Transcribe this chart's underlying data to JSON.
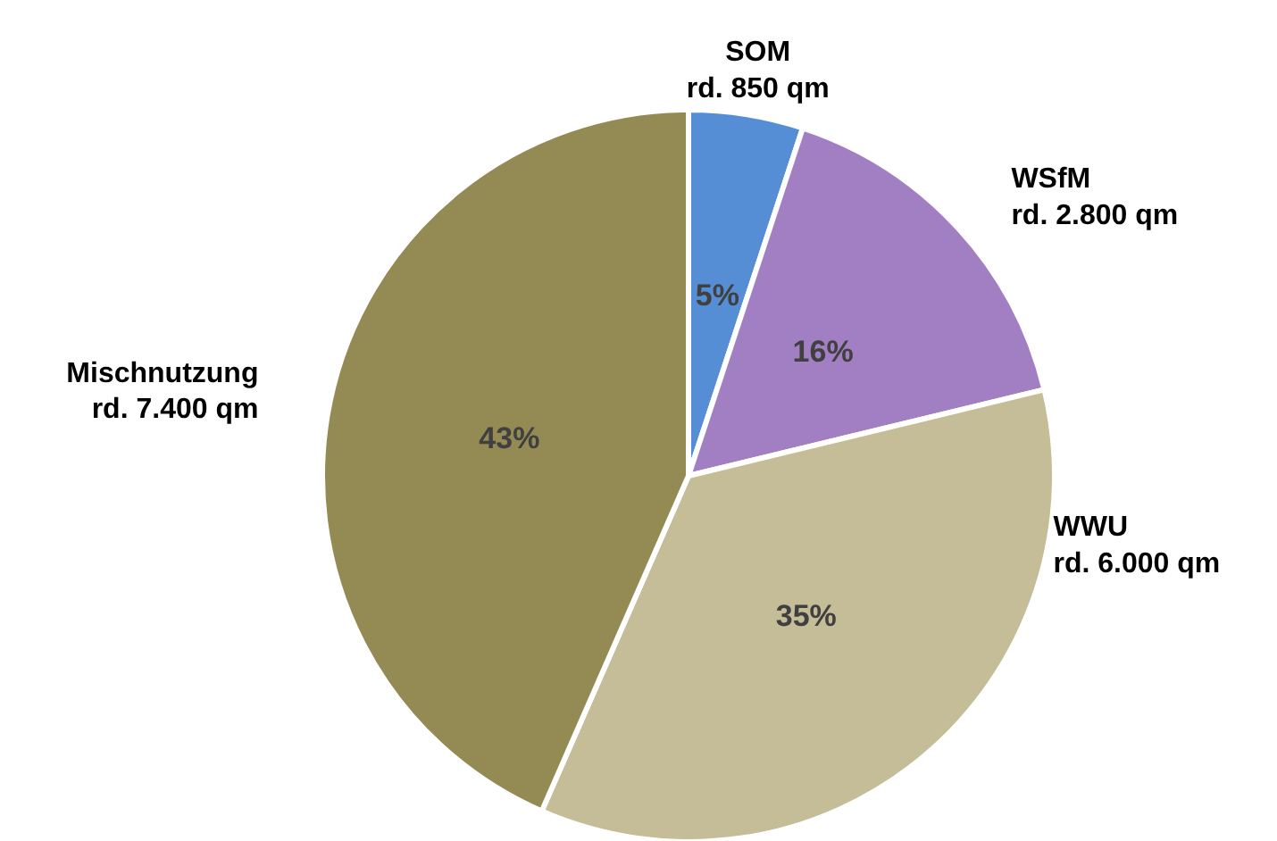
{
  "chart_data": {
    "type": "pie",
    "categories": [
      "SOM\nrd. 850 qm",
      "WSfM\nrd. 2.800 qm",
      "WWU\nrd. 6.000 qm",
      "Mischnutzung\nrd. 7.400 qm"
    ],
    "values": [
      5,
      16,
      35,
      43
    ],
    "value_labels": [
      "5%",
      "16%",
      "35%",
      "43%"
    ],
    "colors": [
      "#558ed5",
      "#a17fc2",
      "#c4bd97",
      "#948a54"
    ]
  }
}
